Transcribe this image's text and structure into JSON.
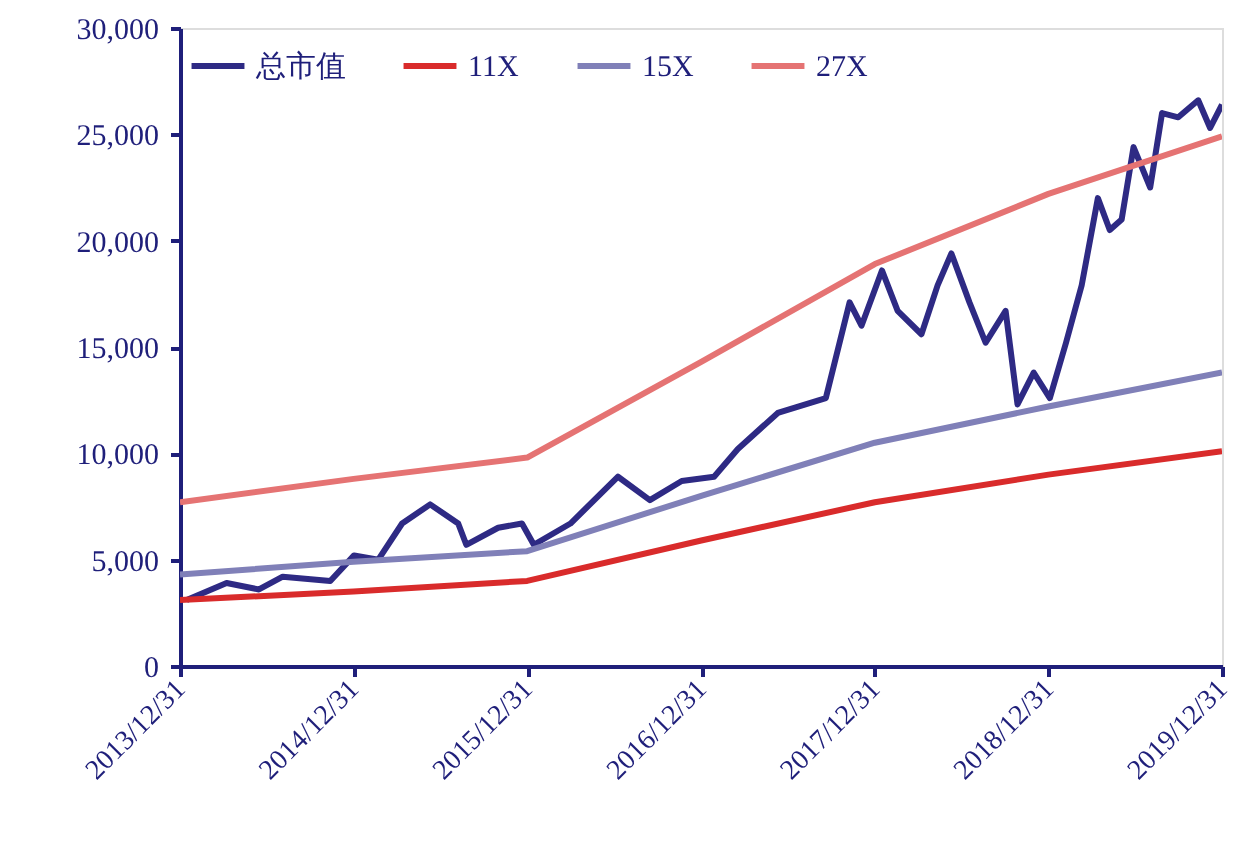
{
  "chart_data": {
    "type": "line",
    "xlim": [
      "2013-12-31",
      "2019-12-31"
    ],
    "xticks": [
      {
        "value": "2013-12-31",
        "label": "2013/12/31"
      },
      {
        "value": "2014-12-31",
        "label": "2014/12/31"
      },
      {
        "value": "2015-12-31",
        "label": "2015/12/31"
      },
      {
        "value": "2016-12-31",
        "label": "2016/12/31"
      },
      {
        "value": "2017-12-31",
        "label": "2017/12/31"
      },
      {
        "value": "2018-12-31",
        "label": "2018/12/31"
      },
      {
        "value": "2019-12-31",
        "label": "2019/12/31"
      }
    ],
    "ylim": [
      0,
      30000
    ],
    "yticks": [
      0,
      {
        "value": 5000,
        "label": "5,000"
      },
      {
        "value": 10000,
        "label": "10,000"
      },
      {
        "value": 15000,
        "label": "15,000"
      },
      {
        "value": 20000,
        "label": "20,000"
      },
      {
        "value": 25000,
        "label": "25,000"
      },
      {
        "value": 30000,
        "label": "30,000"
      }
    ],
    "grid": false,
    "legend": "top",
    "marker": "none",
    "line_style": "solid",
    "series": [
      {
        "name": "总市值",
        "color": "#2e2a84",
        "x": [
          "2014-01-14",
          "2014-04-08",
          "2014-06-15",
          "2014-08-04",
          "2014-11-12",
          "2015-01-01",
          "2015-02-21",
          "2015-04-12",
          "2015-06-10",
          "2015-08-08",
          "2015-08-25",
          "2015-10-31",
          "2015-12-20",
          "2016-01-14",
          "2016-03-31",
          "2016-07-09",
          "2016-09-14",
          "2016-11-20",
          "2017-01-27",
          "2017-03-18",
          "2017-06-10",
          "2017-09-19",
          "2017-11-08",
          "2017-12-03",
          "2018-01-15",
          "2018-02-17",
          "2018-04-08",
          "2018-05-12",
          "2018-06-10",
          "2018-07-18",
          "2018-08-21",
          "2018-10-02",
          "2018-10-27",
          "2018-11-30",
          "2019-01-03",
          "2019-02-06",
          "2019-03-11",
          "2019-04-14",
          "2019-05-09",
          "2019-06-03",
          "2019-06-28",
          "2019-08-02",
          "2019-08-27",
          "2019-09-30",
          "2019-11-11",
          "2019-12-06",
          "2019-12-31"
        ],
        "values": [
          3100,
          3900,
          3600,
          4200,
          4000,
          5200,
          5000,
          6700,
          7600,
          6700,
          5700,
          6500,
          6700,
          5700,
          6700,
          8900,
          7800,
          8700,
          8900,
          10200,
          11900,
          12600,
          17100,
          16000,
          18600,
          16700,
          15600,
          17900,
          19400,
          17100,
          15200,
          16700,
          12300,
          13800,
          12600,
          15200,
          17900,
          22000,
          20500,
          21000,
          24400,
          22500,
          26000,
          25800,
          26600,
          25300,
          26400
        ]
      },
      {
        "name": "11X",
        "color": "#d92b2b",
        "x": [
          "2013-12-31",
          "2014-12-31",
          "2015-12-31",
          "2016-12-31",
          "2017-12-31",
          "2018-12-31",
          "2019-12-31"
        ],
        "values": [
          3100,
          3500,
          4000,
          5900,
          7700,
          9000,
          10100
        ]
      },
      {
        "name": "15X",
        "color": "#8080b8",
        "x": [
          "2013-12-31",
          "2014-12-31",
          "2015-12-31",
          "2016-12-31",
          "2017-12-31",
          "2018-12-31",
          "2019-12-31"
        ],
        "values": [
          4300,
          4900,
          5400,
          8000,
          10500,
          12200,
          13800
        ]
      },
      {
        "name": "27X",
        "color": "#e57373",
        "x": [
          "2013-12-31",
          "2014-12-31",
          "2015-12-31",
          "2016-12-31",
          "2017-12-31",
          "2018-12-31",
          "2019-12-31"
        ],
        "values": [
          7700,
          8800,
          9800,
          14300,
          18900,
          22200,
          24900
        ]
      }
    ]
  }
}
